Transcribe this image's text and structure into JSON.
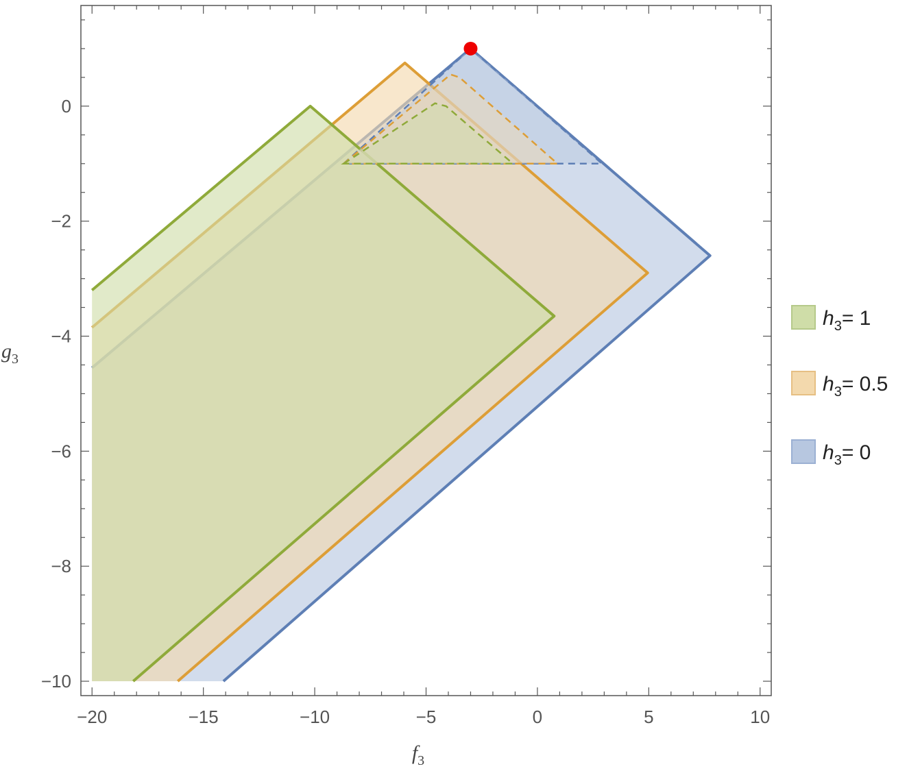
{
  "chart_data": {
    "type": "area",
    "xlabel": {
      "base": "f",
      "sub": "3"
    },
    "ylabel": {
      "base": "g",
      "sub": "3"
    },
    "xlim": [
      -20.5,
      10.5
    ],
    "ylim": [
      -10.25,
      1.75
    ],
    "x_ticks": [
      -20,
      -15,
      -10,
      -5,
      0,
      5,
      10
    ],
    "x_tick_labels": [
      "−20",
      "−15",
      "−10",
      "−5",
      "0",
      "5",
      "10"
    ],
    "y_ticks": [
      0,
      -2,
      -4,
      -6,
      -8,
      -10
    ],
    "y_tick_labels": [
      "0",
      "−2",
      "−4",
      "−6",
      "−8",
      "−10"
    ],
    "grid": false,
    "legend_position": "right",
    "series": [
      {
        "name": "h3= 0",
        "legend": {
          "var": "h",
          "sub": "3",
          "rest": "= 0"
        },
        "stroke": "#5e7fb5",
        "fill": "#b7c7e0",
        "region": [
          [
            -20,
            -4.55
          ],
          [
            -3.0,
            1.0
          ],
          [
            7.75,
            -2.6
          ],
          [
            -14.1,
            -10
          ],
          [
            -20,
            -10
          ]
        ],
        "dashed_region": [
          [
            -8.7,
            -1.0
          ],
          [
            -3.0,
            1.0
          ],
          [
            -2.4,
            0.8
          ],
          [
            2.9,
            -1.0
          ]
        ]
      },
      {
        "name": "h3= 0.5",
        "legend": {
          "var": "h",
          "sub": "3",
          "rest": "= 0.5"
        },
        "stroke": "#dd9e37",
        "fill": "#f3d9ad",
        "region": [
          [
            -20,
            -3.85
          ],
          [
            -5.95,
            0.75
          ],
          [
            4.95,
            -2.9
          ],
          [
            -16.15,
            -10
          ],
          [
            -20,
            -10
          ]
        ],
        "dashed_region": [
          [
            -8.7,
            -1.0
          ],
          [
            -3.9,
            0.55
          ],
          [
            -3.5,
            0.5
          ],
          [
            0.9,
            -1.0
          ]
        ]
      },
      {
        "name": "h3= 1",
        "legend": {
          "var": "h",
          "sub": "3",
          "rest": "= 1"
        },
        "stroke": "#8faa3a",
        "fill": "#cfdda8",
        "region": [
          [
            -20,
            -3.2
          ],
          [
            -10.2,
            0.0
          ],
          [
            0.75,
            -3.65
          ],
          [
            -18.15,
            -10
          ],
          [
            -20,
            -10
          ]
        ],
        "dashed_region": [
          [
            -8.7,
            -1.0
          ],
          [
            -4.6,
            0.05
          ],
          [
            -4.1,
            0.0
          ],
          [
            -1.1,
            -1.0
          ]
        ]
      }
    ],
    "marker": {
      "x": -3.0,
      "y": 1.0,
      "color": "#ee0000"
    }
  }
}
